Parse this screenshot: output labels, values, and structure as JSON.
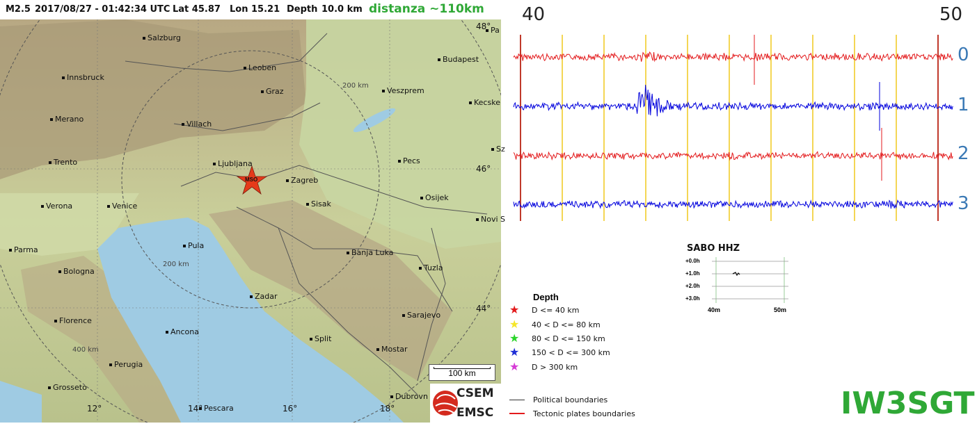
{
  "info": {
    "magnitude": "M2.5",
    "datetime": "2017/08/27 - 01:42:34 UTC",
    "lat": "Lat 45.87",
    "lon": "Lon 15.21",
    "depth": "Depth",
    "depth_value": "10.0 km",
    "distance": "distanza ~110km"
  },
  "map": {
    "cities": [
      {
        "name": "Salzburg"
      },
      {
        "name": "Innsbruck"
      },
      {
        "name": "Leoben"
      },
      {
        "name": "Graz"
      },
      {
        "name": "Merano"
      },
      {
        "name": "Villach"
      },
      {
        "name": "Trento"
      },
      {
        "name": "Ljubljana"
      },
      {
        "name": "Zagreb"
      },
      {
        "name": "Verona"
      },
      {
        "name": "Venice"
      },
      {
        "name": "Sisak"
      },
      {
        "name": "Parma"
      },
      {
        "name": "Pula"
      },
      {
        "name": "Bologna"
      },
      {
        "name": "Banja Luka"
      },
      {
        "name": "Zadar"
      },
      {
        "name": "Florence"
      },
      {
        "name": "Ancona"
      },
      {
        "name": "Split"
      },
      {
        "name": "Perugia"
      },
      {
        "name": "Grosseto"
      },
      {
        "name": "Pescara"
      },
      {
        "name": "Mostar"
      },
      {
        "name": "Sarajevo"
      },
      {
        "name": "Tuzla"
      },
      {
        "name": "Osijek"
      },
      {
        "name": "Pecs"
      },
      {
        "name": "Budapest"
      },
      {
        "name": "Veszprem"
      },
      {
        "name": "Kecske"
      },
      {
        "name": "Novi S"
      },
      {
        "name": "Dubrovn"
      },
      {
        "name": "Sz"
      },
      {
        "name": "Pa"
      }
    ],
    "distance_rings": [
      "200 km",
      "200 km",
      "400 km"
    ],
    "grid_labels": [
      "12°",
      "14°",
      "16°",
      "18°",
      "46°",
      "44°",
      "48°"
    ],
    "epicenter_label": "MSO",
    "scale_label": "100 km",
    "logo_line1": "CSEM",
    "logo_line2": "EMSC"
  },
  "seismogram": {
    "minute_start": "40",
    "minute_end": "50",
    "trace_labels": [
      "0",
      "1",
      "2",
      "3"
    ],
    "trace_colors": [
      "#e31a1c",
      "#0000dd",
      "#e31a1c",
      "#0000dd"
    ],
    "marker_color": "#f2cc2a",
    "boundary_color": "#c0392b"
  },
  "helicorder": {
    "title": "SABO HHZ",
    "row_labels": [
      "+0.0h",
      "+1.0h",
      "+2.0h",
      "+3.0h"
    ],
    "x_labels": [
      "40m",
      "50m"
    ]
  },
  "legend": {
    "title": "Depth",
    "items": [
      {
        "label": "D <= 40 km",
        "color": "#e31a1c"
      },
      {
        "label": "40 < D <= 80 km",
        "color": "#f5e62a"
      },
      {
        "label": "80 < D <= 150 km",
        "color": "#2bd52b"
      },
      {
        "label": "150 < D <= 300 km",
        "color": "#1f2fd6"
      },
      {
        "label": "D > 300 km",
        "color": "#d63ad6"
      }
    ],
    "lines": [
      {
        "label": "Political boundaries",
        "color": "#333333"
      },
      {
        "label": "Tectonic plates boundaries",
        "color": "#e31a1c"
      }
    ]
  },
  "callsign": "IW3SGT"
}
